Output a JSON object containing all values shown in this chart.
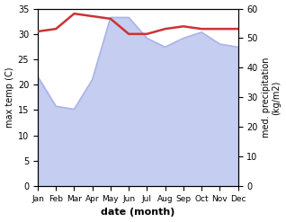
{
  "months": [
    "Jan",
    "Feb",
    "Mar",
    "Apr",
    "May",
    "Jun",
    "Jul",
    "Aug",
    "Sep",
    "Oct",
    "Nov",
    "Dec"
  ],
  "temp": [
    30.5,
    31.0,
    34.0,
    33.5,
    33.0,
    30.0,
    30.0,
    31.0,
    31.5,
    31.0,
    31.0,
    31.0
  ],
  "precip": [
    37.0,
    27.0,
    26.0,
    36.0,
    57.0,
    57.0,
    50.0,
    47.0,
    50.0,
    52.0,
    48.0,
    47.0
  ],
  "temp_color": "#cc3333",
  "precip_fill_color": "#c5cdf0",
  "precip_line_color": "#aab4e8",
  "temp_ylim": [
    0,
    35
  ],
  "precip_ylim": [
    0,
    60
  ],
  "xlabel": "date (month)",
  "ylabel_left": "max temp (C)",
  "ylabel_right": "med. precipitation\n(kg/m2)",
  "temp_linewidth": 1.8,
  "precip_linewidth": 1.2,
  "temp_yticks": [
    0,
    5,
    10,
    15,
    20,
    25,
    30,
    35
  ],
  "precip_yticks": [
    0,
    10,
    20,
    30,
    40,
    50,
    60
  ]
}
